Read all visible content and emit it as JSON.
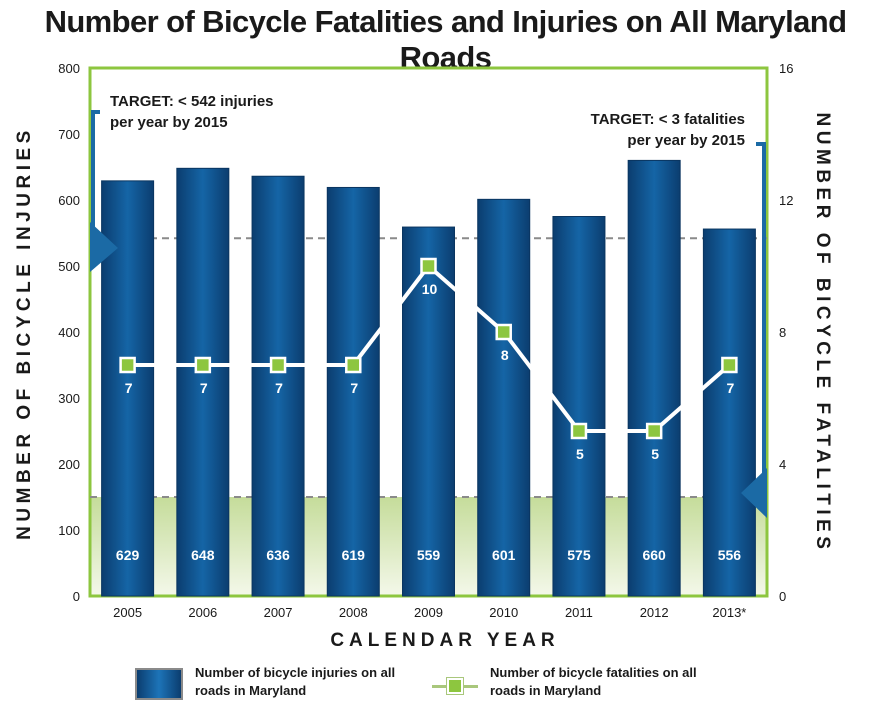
{
  "title": "Number of Bicycle Fatalities and Injuries on All Maryland Roads",
  "chart_data": {
    "type": "bar",
    "categories": [
      "2005",
      "2006",
      "2007",
      "2008",
      "2009",
      "2010",
      "2011",
      "2012",
      "2013*"
    ],
    "series": [
      {
        "name": "Number of bicycle injuries on all roads in Maryland",
        "type": "bar",
        "axis": "left",
        "values": [
          629,
          648,
          636,
          619,
          559,
          601,
          575,
          660,
          556
        ]
      },
      {
        "name": "Number of bicycle fatalities on all roads in Maryland",
        "type": "line",
        "axis": "right",
        "values": [
          7,
          7,
          7,
          7,
          10,
          8,
          5,
          5,
          7
        ]
      }
    ],
    "xlabel": "CALENDAR YEAR",
    "ylabel_left": "NUMBER OF BICYCLE INJURIES",
    "ylabel_right": "NUMBER OF BICYCLE FATALITIES",
    "ylim_left": [
      0,
      800
    ],
    "yticks_left": [
      0,
      100,
      200,
      300,
      400,
      500,
      600,
      700,
      800
    ],
    "ylim_right": [
      0,
      16
    ],
    "yticks_right": [
      0,
      4,
      8,
      12,
      16
    ],
    "targets": [
      {
        "label": "TARGET: < 542 injuries",
        "label2": "per year by 2015",
        "axis": "left",
        "value": 542
      },
      {
        "label": "TARGET: < 3 fatalities",
        "label2": "per year by 2015",
        "axis": "right",
        "value": 3
      }
    ],
    "legend_position": "bottom",
    "grid": false,
    "colors": {
      "bar": "#1565a6",
      "bar_dark": "#0b3d6f",
      "line": "#ffffff",
      "marker": "#8dc63f",
      "frame": "#8dc63f",
      "accent": "#1b6aa5",
      "target_zone": "#c5dc9a"
    }
  }
}
